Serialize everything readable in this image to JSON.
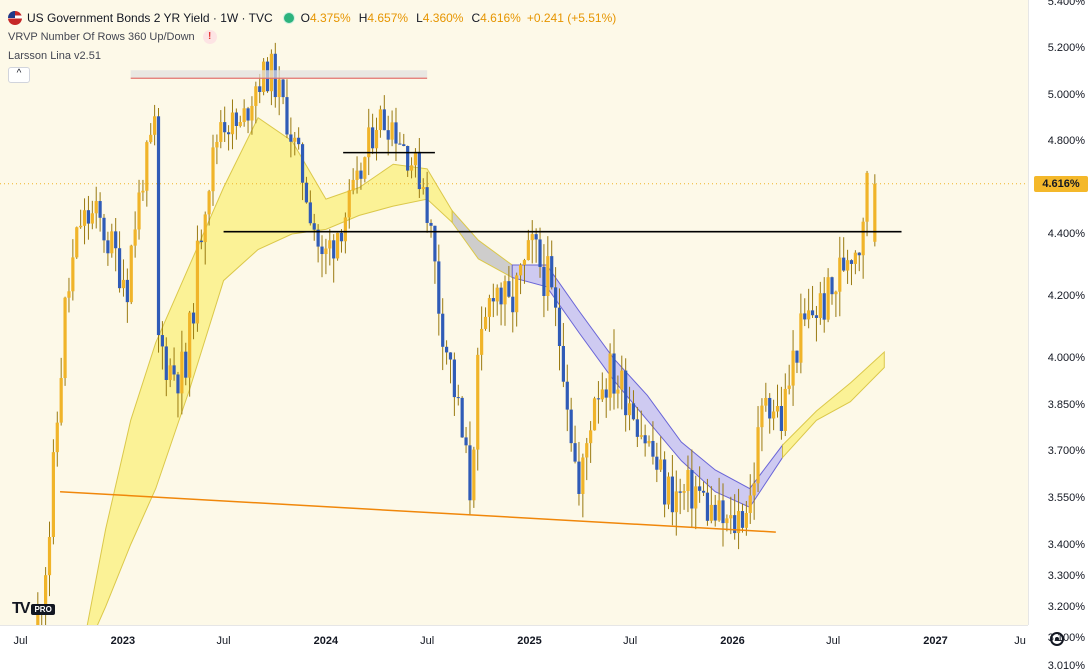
{
  "header": {
    "symbol_title": "US Government Bonds 2 YR Yield · 1W · TVC",
    "open_key": "O",
    "open_value": "4.375%",
    "high_key": "H",
    "high_value": "4.657%",
    "low_key": "L",
    "low_value": "4.360%",
    "close_key": "C",
    "close_value": "4.616%",
    "change_value": "+0.241 (+5.51%)",
    "colors": {
      "up": "#e69500",
      "title": "#131722"
    }
  },
  "indicators": [
    {
      "label": "VRVP Number Of Rows 360 Up/Down",
      "warning_icon": "!"
    },
    {
      "label": "Larsson Lina v2.51"
    }
  ],
  "collapse_icon": "^",
  "logo": {
    "mark": "TV",
    "badge": "PRO"
  },
  "chart_data": {
    "type": "candlestick",
    "y_unit": "%",
    "y_ticks": [
      3.01,
      3.1,
      3.2,
      3.3,
      3.4,
      3.55,
      3.7,
      3.85,
      4.0,
      4.2,
      4.4,
      4.6,
      4.8,
      5.0,
      5.2,
      5.4
    ],
    "y_tick_labels": [
      "3.010%",
      "3.100%",
      "3.200%",
      "3.300%",
      "3.400%",
      "3.550%",
      "3.700%",
      "3.850%",
      "4.000%",
      "4.200%",
      "4.400%",
      "4.600%",
      "4.800%",
      "5.000%",
      "5.200%",
      "5.400%"
    ],
    "x_range": [
      "2022-05-01",
      "2027-06-30"
    ],
    "x_ticks": [
      {
        "label": "Jul",
        "date": "2022-07-01"
      },
      {
        "label": "2023",
        "date": "2023-01-01",
        "year": true
      },
      {
        "label": "Jul",
        "date": "2023-07-01"
      },
      {
        "label": "2024",
        "date": "2024-01-01",
        "year": true
      },
      {
        "label": "Jul",
        "date": "2024-07-01"
      },
      {
        "label": "2025",
        "date": "2025-01-01",
        "year": true
      },
      {
        "label": "Jul",
        "date": "2025-07-01"
      },
      {
        "label": "2026",
        "date": "2026-01-01",
        "year": true
      },
      {
        "label": "Jul",
        "date": "2026-07-01"
      },
      {
        "label": "2027",
        "date": "2027-01-01",
        "year": true
      },
      {
        "label": "Ju",
        "date": "2027-06-20"
      }
    ],
    "last_price": 4.616,
    "last_price_label": "4.616%",
    "colors": {
      "up": "#f0b429",
      "down": "#2f5bb7",
      "bg": "#fdf9e8",
      "band_yellow": "#fbf28e",
      "band_blue": "#c9c6f2",
      "band_gray": "#c9c9c9",
      "support": "#f0870a",
      "resistance": "#e3736f"
    },
    "weekly_closes": [
      [
        "2022-08-01",
        3.05
      ],
      [
        "2022-08-29",
        3.45
      ],
      [
        "2022-09-26",
        4.15
      ],
      [
        "2022-10-24",
        4.45
      ],
      [
        "2022-11-21",
        4.48
      ],
      [
        "2022-12-19",
        4.35
      ],
      [
        "2023-01-16",
        4.25
      ],
      [
        "2023-02-13",
        4.65
      ],
      [
        "2023-03-06",
        4.85
      ],
      [
        "2023-03-13",
        4.05
      ],
      [
        "2023-04-03",
        3.97
      ],
      [
        "2023-05-01",
        3.95
      ],
      [
        "2023-06-05",
        4.55
      ],
      [
        "2023-07-03",
        4.9
      ],
      [
        "2023-08-07",
        4.85
      ],
      [
        "2023-09-04",
        5.05
      ],
      [
        "2023-10-02",
        5.1
      ],
      [
        "2023-10-30",
        4.9
      ],
      [
        "2023-11-27",
        4.65
      ],
      [
        "2024-01-01",
        4.3
      ],
      [
        "2024-02-05",
        4.45
      ],
      [
        "2024-03-04",
        4.6
      ],
      [
        "2024-04-08",
        4.9
      ],
      [
        "2024-05-06",
        4.88
      ],
      [
        "2024-06-03",
        4.75
      ],
      [
        "2024-07-01",
        4.62
      ],
      [
        "2024-07-29",
        4.18
      ],
      [
        "2024-08-26",
        3.9
      ],
      [
        "2024-09-23",
        3.58
      ],
      [
        "2024-10-07",
        3.95
      ],
      [
        "2024-11-04",
        4.25
      ],
      [
        "2024-12-02",
        4.15
      ],
      [
        "2025-01-13",
        4.35
      ],
      [
        "2025-02-10",
        4.25
      ],
      [
        "2025-03-10",
        4.0
      ],
      [
        "2025-04-07",
        3.55
      ],
      [
        "2025-05-05",
        3.9
      ],
      [
        "2025-06-02",
        3.95
      ],
      [
        "2025-07-07",
        3.88
      ],
      [
        "2025-08-04",
        3.75
      ],
      [
        "2025-09-08",
        3.58
      ],
      [
        "2025-10-06",
        3.55
      ],
      [
        "2025-11-03",
        3.58
      ],
      [
        "2025-12-01",
        3.5
      ],
      [
        "2026-01-05",
        3.45
      ],
      [
        "2026-02-09",
        3.55
      ],
      [
        "2026-03-09",
        3.9
      ],
      [
        "2026-04-06",
        3.8
      ],
      [
        "2026-05-04",
        4.05
      ],
      [
        "2026-06-01",
        4.15
      ],
      [
        "2026-07-06",
        4.2
      ],
      [
        "2026-08-03",
        4.35
      ],
      [
        "2026-08-24",
        4.38
      ],
      [
        "2026-09-07",
        4.616
      ]
    ],
    "support_line": [
      [
        "2022-09-10",
        3.57
      ],
      [
        "2026-03-20",
        3.44
      ]
    ],
    "resistance_line": [
      [
        "2023-01-15",
        5.07
      ],
      [
        "2024-07-01",
        5.07
      ]
    ],
    "horizontal_lines": [
      [
        [
          "2023-07-01",
          4.41
        ],
        [
          "2026-11-01",
          4.41
        ]
      ],
      [
        [
          "2024-02-01",
          4.75
        ],
        [
          "2024-07-15",
          4.75
        ]
      ]
    ],
    "band_fast": [
      [
        "2022-10-15",
        3.01
      ],
      [
        "2022-12-01",
        3.45
      ],
      [
        "2023-01-15",
        3.8
      ],
      [
        "2023-03-01",
        4.05
      ],
      [
        "2023-05-01",
        4.3
      ],
      [
        "2023-07-01",
        4.6
      ],
      [
        "2023-09-01",
        4.9
      ],
      [
        "2023-11-01",
        4.8
      ],
      [
        "2024-01-01",
        4.55
      ],
      [
        "2024-03-01",
        4.6
      ],
      [
        "2024-05-01",
        4.7
      ],
      [
        "2024-07-01",
        4.68
      ],
      [
        "2024-08-15",
        4.5
      ],
      [
        "2024-10-01",
        4.38
      ],
      [
        "2024-12-01",
        4.3
      ],
      [
        "2025-02-01",
        4.3
      ],
      [
        "2025-04-01",
        4.15
      ],
      [
        "2025-06-01",
        4.0
      ],
      [
        "2025-08-01",
        3.88
      ],
      [
        "2025-10-01",
        3.73
      ],
      [
        "2025-12-01",
        3.64
      ],
      [
        "2026-02-01",
        3.58
      ],
      [
        "2026-04-01",
        3.72
      ],
      [
        "2026-06-01",
        3.83
      ],
      [
        "2026-08-01",
        3.92
      ],
      [
        "2026-10-01",
        4.02
      ]
    ],
    "band_slow": [
      [
        "2022-10-15",
        3.01
      ],
      [
        "2022-12-01",
        3.2
      ],
      [
        "2023-01-15",
        3.4
      ],
      [
        "2023-03-01",
        3.58
      ],
      [
        "2023-05-01",
        3.9
      ],
      [
        "2023-07-01",
        4.25
      ],
      [
        "2023-09-01",
        4.35
      ],
      [
        "2023-11-01",
        4.4
      ],
      [
        "2024-01-01",
        4.42
      ],
      [
        "2024-03-01",
        4.48
      ],
      [
        "2024-05-01",
        4.52
      ],
      [
        "2024-07-01",
        4.55
      ],
      [
        "2024-08-15",
        4.45
      ],
      [
        "2024-10-01",
        4.32
      ],
      [
        "2024-12-01",
        4.26
      ],
      [
        "2025-02-01",
        4.23
      ],
      [
        "2025-04-01",
        4.08
      ],
      [
        "2025-06-01",
        3.93
      ],
      [
        "2025-08-01",
        3.8
      ],
      [
        "2025-10-01",
        3.67
      ],
      [
        "2025-12-01",
        3.57
      ],
      [
        "2026-02-01",
        3.52
      ],
      [
        "2026-04-01",
        3.68
      ],
      [
        "2026-06-01",
        3.8
      ],
      [
        "2026-08-01",
        3.86
      ],
      [
        "2026-10-01",
        3.97
      ]
    ]
  }
}
